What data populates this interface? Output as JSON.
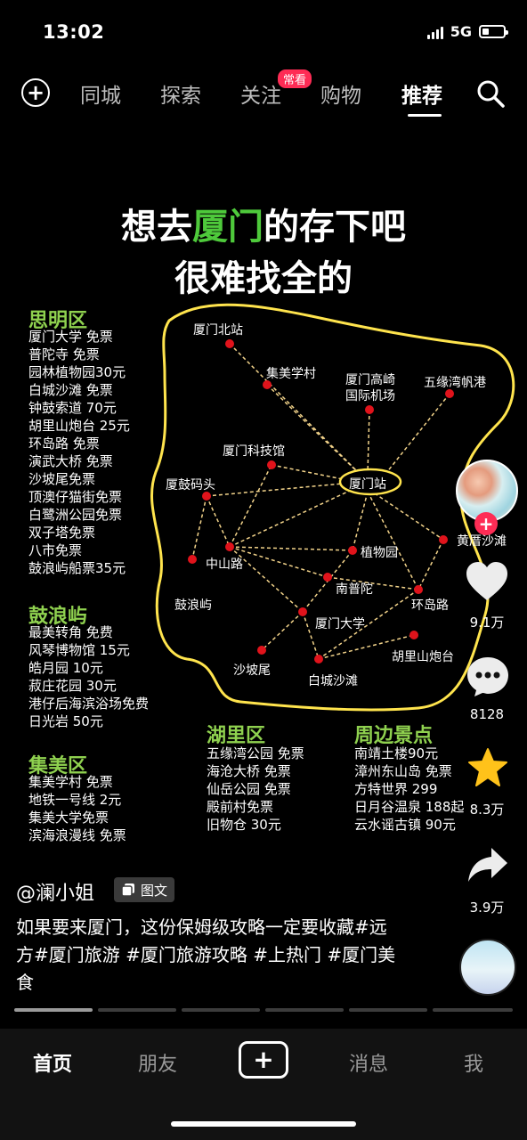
{
  "status": {
    "time": "13:02",
    "network": "5G",
    "battery_level": 0.3
  },
  "topnav": {
    "tabs": [
      "同城",
      "探索",
      "关注",
      "购物",
      "推荐"
    ],
    "active_tab": "推荐",
    "badge": "常看"
  },
  "poster": {
    "title_part1": "想去",
    "title_highlight": "厦门",
    "title_part2": "的存下吧",
    "title_line2": "很难找全的",
    "siming": {
      "title": "思明区",
      "items": [
        "厦门大学 免票",
        "普陀寺 免票",
        "园林植物园30元",
        "白城沙滩 免票",
        "钟鼓索道 70元",
        "胡里山炮台 25元",
        "环岛路 免票",
        "演武大桥 免票",
        "沙坡尾免票",
        "顶澳仔猫街免票",
        "白鹭洲公园免票",
        "双子塔免票",
        "八市免票",
        "鼓浪屿船票35元"
      ]
    },
    "gulangyu": {
      "title": "鼓浪屿",
      "items": [
        "最美转角 免费",
        "风琴博物馆 15元",
        "皓月园 10元",
        "菽庄花园 30元",
        "港仔后海滨浴场免费",
        "日光岩 50元"
      ]
    },
    "jimei": {
      "title": "集美区",
      "items": [
        "集美学村 免票",
        "地铁一号线 2元",
        "集美大学免票",
        "滨海浪漫线 免票"
      ]
    },
    "huli": {
      "title": "湖里区",
      "items": [
        "五缘湾公园 免票",
        "海沧大桥 免票",
        "仙岳公园 免票",
        "殿前村免票",
        "旧物仓 30元"
      ]
    },
    "zhoubian": {
      "title": "周边景点",
      "items": [
        "南靖土楼90元",
        "漳州东山岛 免票",
        "方特世界 299",
        "日月谷温泉 188起",
        "云水谣古镇 90元"
      ]
    },
    "map": {
      "hub": "厦门站",
      "labels": {
        "beizhan": "厦门北站",
        "jimei": "集美学村",
        "airport_line1": "厦门高崎",
        "airport_line2": "国际机场",
        "wuyuan": "五缘湾帆港",
        "keji": "厦门科技馆",
        "xiagu": "厦鼓码头",
        "huangcuo": "黄厝沙滩",
        "zhongshan": "中山路",
        "zhiwu": "植物园",
        "nanputuo": "南普陀",
        "gulang": "鼓浪屿",
        "huandao": "环岛路",
        "xiada": "厦门大学",
        "hulishan": "胡里山炮台",
        "shapowei": "沙坡尾",
        "baicheng": "白城沙滩"
      }
    }
  },
  "rail": {
    "likes": "9.1万",
    "comments": "8128",
    "favorites": "8.3万",
    "shares": "3.9万"
  },
  "post": {
    "author": "@澜小姐",
    "type_tag": "图文",
    "caption": "如果要来厦门，这份保姆级攻略一定要收藏#远方#厦门旅游 #厦门旅游攻略 #上热门 #厦门美食"
  },
  "bottomnav": {
    "home": "首页",
    "friends": "朋友",
    "messages": "消息",
    "me": "我"
  }
}
